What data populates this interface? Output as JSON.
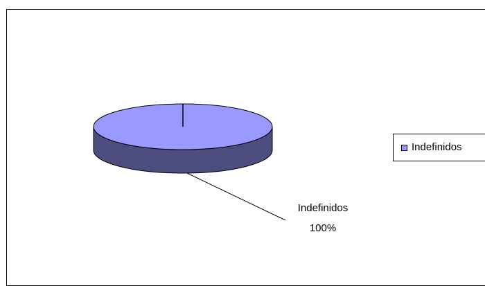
{
  "chart_data": {
    "type": "pie",
    "style": "3d",
    "categories": [
      "Indefinidos"
    ],
    "values": [
      100
    ],
    "data_labels": [
      {
        "category": "Indefinidos",
        "percent": "100%"
      }
    ],
    "legend": {
      "placement": "right",
      "entries": [
        "Indefinidos"
      ]
    },
    "colors": {
      "top": "#9999ff",
      "side": "#4d4d80",
      "outline": "#000000"
    }
  }
}
